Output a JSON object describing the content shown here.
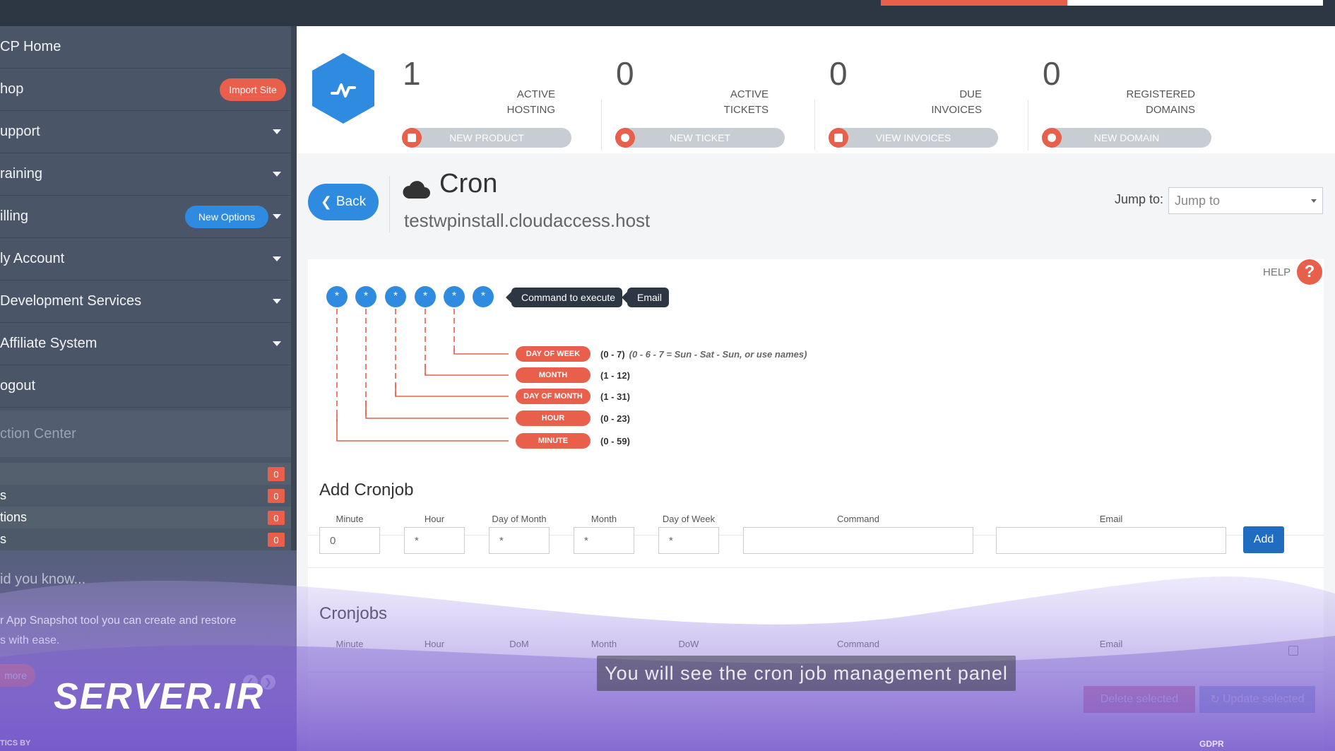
{
  "sidebar": {
    "items": [
      {
        "label": "CP Home"
      },
      {
        "label": "hop",
        "badge": "Import Site"
      },
      {
        "label": "upport"
      },
      {
        "label": "raining"
      },
      {
        "label": "illing",
        "badge": "New Options"
      },
      {
        "label": "ly Account"
      },
      {
        "label": "Development Services"
      },
      {
        "label": "Affiliate System"
      },
      {
        "label": "ogout"
      }
    ],
    "action_center": {
      "title": "ction Center",
      "rows": [
        {
          "label": "",
          "count": "0"
        },
        {
          "label": "s",
          "count": "0"
        },
        {
          "label": "tions",
          "count": "0"
        },
        {
          "label": "s",
          "count": "0"
        }
      ]
    },
    "did_you_know": {
      "title": "id you know...",
      "line1": "r App Snapshot tool you can create and restore",
      "line2": "s with ease.",
      "more": "more"
    },
    "logo_text": "SERVER.IR",
    "analytics": "TICS BY"
  },
  "stats": [
    {
      "number": "1",
      "label1": "ACTIVE",
      "label2": "HOSTING",
      "button": "NEW PRODUCT",
      "icon": "cart-icon"
    },
    {
      "number": "0",
      "label1": "ACTIVE",
      "label2": "TICKETS",
      "button": "NEW TICKET",
      "icon": "chat-icon"
    },
    {
      "number": "0",
      "label1": "DUE",
      "label2": "INVOICES",
      "button": "VIEW INVOICES",
      "icon": "invoice-icon"
    },
    {
      "number": "0",
      "label1": "REGISTERED",
      "label2": "DOMAINS",
      "button": "NEW DOMAIN",
      "icon": "globe-icon"
    }
  ],
  "header": {
    "back": "Back",
    "title": "Cron",
    "domain": "testwpinstall.cloudaccess.host",
    "jump_label": "Jump to:",
    "jump_value": "Jump to"
  },
  "help": "HELP",
  "diagram": {
    "star": "*",
    "command_tag": "Command to execute",
    "email_tag": "Email",
    "fields": [
      {
        "label": "DAY OF WEEK",
        "range": "(0 - 7)",
        "note": "(0 - 6 - 7 = Sun - Sat - Sun, or use names)"
      },
      {
        "label": "MONTH",
        "range": "(1 - 12)",
        "note": ""
      },
      {
        "label": "DAY OF MONTH",
        "range": "(1 - 31)",
        "note": ""
      },
      {
        "label": "HOUR",
        "range": "(0 - 23)",
        "note": ""
      },
      {
        "label": "MINUTE",
        "range": "(0 - 59)",
        "note": ""
      }
    ]
  },
  "add_cronjob": {
    "title": "Add Cronjob",
    "headers": [
      "Minute",
      "Hour",
      "Day of Month",
      "Month",
      "Day of Week",
      "Command",
      "Email"
    ],
    "values": [
      "0",
      "*",
      "*",
      "*",
      "*",
      "",
      ""
    ],
    "add": "Add"
  },
  "cronjobs": {
    "title": "Cronjobs",
    "headers": [
      "Minute",
      "Hour",
      "DoM",
      "Month",
      "DoW",
      "Command",
      "Email"
    ],
    "delete": "Delete selected",
    "update": "Update selected"
  },
  "subtitle": "You will see the cron job management panel",
  "footer": {
    "gdpr": "GDPR"
  },
  "colors": {
    "accent": "#2e8be0",
    "danger": "#e8604c",
    "sidebar": "#4a5567"
  }
}
